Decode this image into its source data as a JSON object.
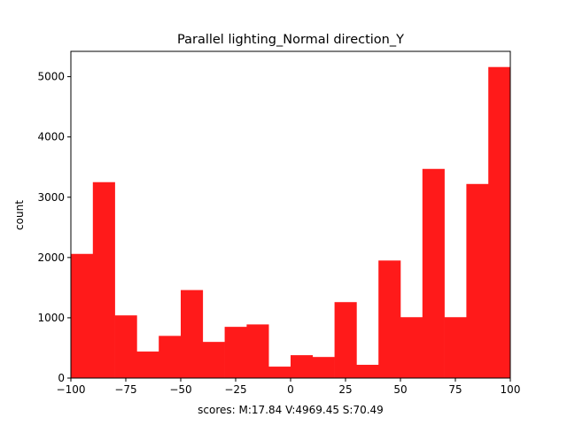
{
  "chart_data": {
    "type": "bar",
    "title": "Parallel lighting_Normal direction_Y",
    "xlabel": "scores: M:17.84 V:4969.45 S:70.49",
    "ylabel": "count",
    "bin_edges": [
      -100,
      -90,
      -80,
      -70,
      -60,
      -50,
      -40,
      -30,
      -20,
      -10,
      0,
      10,
      20,
      30,
      40,
      50,
      60,
      70,
      80,
      90,
      100
    ],
    "values": [
      2060,
      3250,
      1040,
      440,
      700,
      1460,
      600,
      850,
      890,
      190,
      380,
      350,
      1260,
      220,
      1950,
      1010,
      3470,
      1010,
      3220,
      5160
    ],
    "xlim": [
      -100,
      100
    ],
    "ylim": [
      0,
      5420
    ],
    "xticks": [
      -100,
      -75,
      -50,
      -25,
      0,
      25,
      50,
      75,
      100
    ],
    "xtick_labels": [
      "−100",
      "−75",
      "−50",
      "−25",
      "0",
      "25",
      "50",
      "75",
      "100"
    ],
    "yticks": [
      0,
      1000,
      2000,
      3000,
      4000,
      5000
    ],
    "ytick_labels": [
      "0",
      "1000",
      "2000",
      "3000",
      "4000",
      "5000"
    ],
    "bar_color": "#ff1a1a",
    "grid": false,
    "legend": "none"
  }
}
